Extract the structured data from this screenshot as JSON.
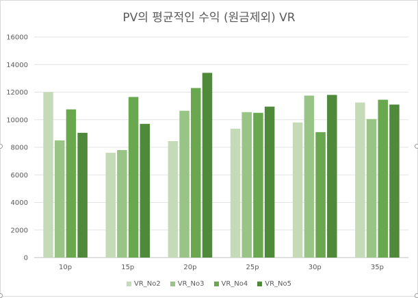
{
  "chart_data": {
    "type": "bar",
    "title": "PV의 평균적인 수익 (원금제외) VR",
    "categories": [
      "10p",
      "15p",
      "20p",
      "25p",
      "30p",
      "35p"
    ],
    "series": [
      {
        "name": "VR_No2",
        "color": "#c5dbb7",
        "values": [
          12000,
          7600,
          8450,
          9350,
          9800,
          11250
        ]
      },
      {
        "name": "VR_No3",
        "color": "#98c485",
        "values": [
          8500,
          7800,
          10650,
          10550,
          11750,
          10050
        ]
      },
      {
        "name": "VR_No4",
        "color": "#6aa84f",
        "values": [
          10750,
          11650,
          12300,
          10500,
          9100,
          11450
        ]
      },
      {
        "name": "VR_No5",
        "color": "#4e8a3a",
        "values": [
          9050,
          9700,
          13400,
          10950,
          11800,
          11100
        ]
      }
    ],
    "ylim": [
      0,
      16000
    ],
    "yticks": [
      "0",
      "2000",
      "4000",
      "6000",
      "8000",
      "10000",
      "12000",
      "14000",
      "16000"
    ],
    "grid": true,
    "legend": "bottom"
  }
}
